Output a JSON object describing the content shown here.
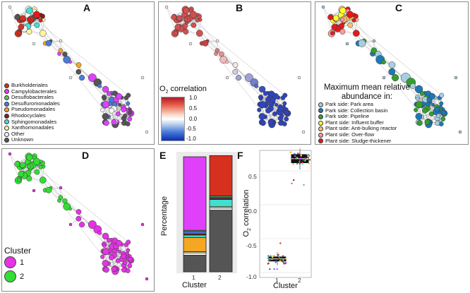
{
  "panels": {
    "A": {
      "label": "A",
      "legend": [
        {
          "name": "Burkholderiales",
          "color": "#d7301f"
        },
        {
          "name": "Campylobacterales",
          "color": "#e040fb"
        },
        {
          "name": "Desulfobacterales",
          "color": "#66bb6a"
        },
        {
          "name": "Desulfuromonadales",
          "color": "#4a7bd8"
        },
        {
          "name": "Pseudomonadales",
          "color": "#f5a623"
        },
        {
          "name": "Rhodocyclales",
          "color": "#8b1a1a"
        },
        {
          "name": "Sphingomonadales",
          "color": "#40e0d0"
        },
        {
          "name": "Xanthomonadales",
          "color": "#fff59d"
        },
        {
          "name": "Other",
          "color": "#f5f5f5"
        },
        {
          "name": "Unknown",
          "color": "#555555"
        }
      ]
    },
    "B": {
      "label": "B",
      "colorbar_title": "O",
      "colorbar_title_sub": "2",
      "colorbar_title_rest": " correlation",
      "ticks": [
        "1.0",
        "0.5",
        "0.0",
        "-0.5",
        "-1.0"
      ]
    },
    "C": {
      "label": "C",
      "legend_title": "Maximum mean relative abundance in:",
      "legend": [
        {
          "name": "Park side: Park area",
          "color": "#a6cee3"
        },
        {
          "name": "Park side: Collection basin",
          "color": "#1f78b4"
        },
        {
          "name": "Park side: Pipeline",
          "color": "#33a02c"
        },
        {
          "name": "Plant side: Influent buffer",
          "color": "#ffff33"
        },
        {
          "name": "Plant side: Anti-bulking reactor",
          "color": "#fdbf6f"
        },
        {
          "name": "Plant side: Over-flow",
          "color": "#fb9a99"
        },
        {
          "name": "Plant side: Sludge-thickener",
          "color": "#e31a1c"
        }
      ]
    },
    "D": {
      "label": "D",
      "legend_title": "Cluster",
      "legend": [
        {
          "name": "1",
          "color": "#e533e5"
        },
        {
          "name": "2",
          "color": "#33dd33"
        }
      ]
    },
    "E": {
      "label": "E",
      "ylabel": "Percentage",
      "xlabel": "Cluster",
      "x_ticks": [
        "1",
        "2"
      ]
    },
    "F": {
      "label": "F",
      "ylabel_main": "O",
      "ylabel_sub": "2",
      "ylabel_rest": " correlation",
      "xlabel": "Cluster",
      "y_ticks": [
        "0.5",
        "0.0",
        "-0.5",
        "-1.0"
      ],
      "x_ticks": [
        "1",
        "2"
      ]
    }
  },
  "chart_data": [
    {
      "type": "bar",
      "stacked": true,
      "xlabel": "Cluster",
      "ylabel": "Percentage",
      "categories": [
        "1",
        "2"
      ],
      "ylim": [
        0,
        100
      ],
      "series": [
        {
          "color": "#555555",
          "values": [
            14,
            52
          ]
        },
        {
          "color": "#f5f5f5",
          "values": [
            2,
            2
          ]
        },
        {
          "color": "#fff59d",
          "values": [
            1,
            1
          ]
        },
        {
          "color": "#f5a623",
          "values": [
            12,
            0
          ]
        },
        {
          "color": "#40e0d0",
          "values": [
            2,
            6
          ]
        },
        {
          "color": "#8b1a1a",
          "values": [
            1,
            1
          ]
        },
        {
          "color": "#4a7bd8",
          "values": [
            2,
            1
          ]
        },
        {
          "color": "#66bb6a",
          "values": [
            1,
            1
          ]
        },
        {
          "color": "#e040fb",
          "values": [
            62,
            0
          ]
        },
        {
          "color": "#d7301f",
          "values": [
            0,
            34
          ]
        }
      ]
    },
    {
      "type": "box",
      "xlabel": "Cluster",
      "ylabel": "O2 correlation",
      "categories": [
        "1",
        "2"
      ],
      "ylim": [
        -1.0,
        1.0
      ],
      "boxes": [
        {
          "median": -0.8,
          "q1": -0.83,
          "q3": -0.77,
          "whisker_low": -0.89,
          "whisker_high": -0.7
        },
        {
          "median": 0.68,
          "q1": 0.62,
          "q3": 0.74,
          "whisker_low": 0.52,
          "whisker_high": 0.83
        }
      ]
    }
  ]
}
